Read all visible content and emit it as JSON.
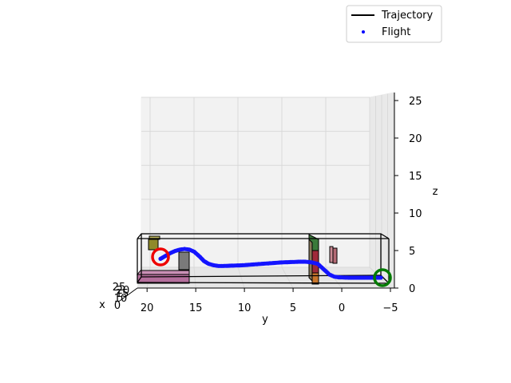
{
  "chart_data": {
    "type": "scatter",
    "projection": "3d",
    "title": "",
    "xlabel": "x",
    "ylabel": "y",
    "zlabel": "z",
    "y_ticks": [
      "20",
      "15",
      "10",
      "5",
      "0",
      "−5"
    ],
    "y_tick_values": [
      20,
      15,
      10,
      5,
      0,
      -5
    ],
    "ylim": [
      21,
      -5
    ],
    "z_ticks": [
      "0",
      "5",
      "10",
      "15",
      "20",
      "25"
    ],
    "z_tick_values": [
      0,
      5,
      10,
      15,
      20,
      25
    ],
    "zlim": [
      0,
      25.5
    ],
    "x_ticks": [
      "0",
      "10",
      "15",
      "20",
      "25"
    ],
    "legend": {
      "position": "upper right",
      "entries": [
        {
          "label": "Trajectory",
          "color": "#000000",
          "marker": "line"
        },
        {
          "label": "Flight",
          "color": "#0000ff",
          "marker": "dot"
        }
      ]
    },
    "start_marker_color": "#ee0000",
    "goal_marker_color": "#007a00",
    "flight_path_yz": [
      [
        18.5,
        4.2
      ],
      [
        18.0,
        4.6
      ],
      [
        17.5,
        5.0
      ],
      [
        17.0,
        5.3
      ],
      [
        16.5,
        5.5
      ],
      [
        16.0,
        5.6
      ],
      [
        15.5,
        5.5
      ],
      [
        15.0,
        5.2
      ],
      [
        14.5,
        4.6
      ],
      [
        14.0,
        3.9
      ],
      [
        13.5,
        3.5
      ],
      [
        13.0,
        3.3
      ],
      [
        12.5,
        3.2
      ],
      [
        12.0,
        3.2
      ],
      [
        11.0,
        3.25
      ],
      [
        10.0,
        3.3
      ],
      [
        9.0,
        3.4
      ],
      [
        8.0,
        3.5
      ],
      [
        7.0,
        3.6
      ],
      [
        6.0,
        3.7
      ],
      [
        5.0,
        3.75
      ],
      [
        4.0,
        3.8
      ],
      [
        3.5,
        3.8
      ],
      [
        2.8,
        3.7
      ],
      [
        2.2,
        3.5
      ],
      [
        1.8,
        3.0
      ],
      [
        1.4,
        2.5
      ],
      [
        1.0,
        2.0
      ],
      [
        0.5,
        1.7
      ],
      [
        0.0,
        1.6
      ],
      [
        -1.0,
        1.55
      ],
      [
        -2.0,
        1.55
      ],
      [
        -3.0,
        1.55
      ],
      [
        -4.0,
        1.55
      ],
      [
        -4.5,
        1.55
      ]
    ],
    "obstacles": [
      {
        "name": "purple-slab",
        "color": "#b46e9c"
      },
      {
        "name": "olive-block",
        "color": "#8f8a2a"
      },
      {
        "name": "gray-pillar",
        "color": "#7a7a7a"
      },
      {
        "name": "green-column",
        "color": "#3a7a3a"
      },
      {
        "name": "red-column",
        "color": "#a02a3a"
      },
      {
        "name": "orange-block",
        "color": "#c8762c"
      },
      {
        "name": "rose-post",
        "color": "#b36a74"
      }
    ]
  }
}
